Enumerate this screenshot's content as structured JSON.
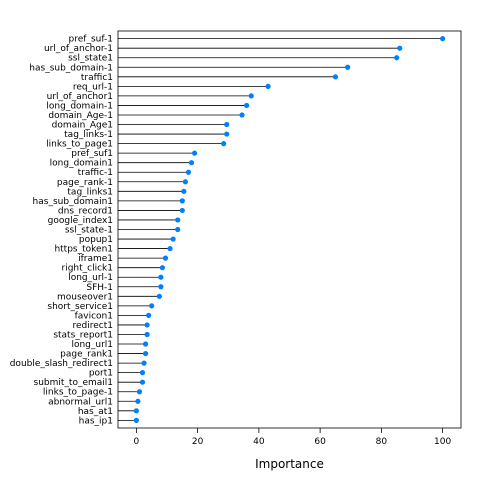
{
  "chart_data": {
    "type": "dotplot",
    "xlabel": "Importance",
    "ylabel": "",
    "title": "",
    "xlim": [
      -6,
      106
    ],
    "xticks": [
      0,
      20,
      40,
      60,
      80,
      100
    ],
    "xtick_labels": [
      "0",
      "20",
      "40",
      "60",
      "80",
      "100"
    ],
    "grid": false,
    "point_color": "#0080ff",
    "stem_color": "#000000",
    "categories": [
      "pref_suf-1",
      "url_of_anchor-1",
      "ssl_state1",
      "has_sub_domain-1",
      "traffic1",
      "req_url-1",
      "url_of_anchor1",
      "long_domain-1",
      "domain_Age-1",
      "domain_Age1",
      "tag_links-1",
      "links_to_page1",
      "pref_suf1",
      "long_domain1",
      "traffic-1",
      "page_rank-1",
      "tag_links1",
      "has_sub_domain1",
      "dns_record1",
      "google_index1",
      "ssl_state-1",
      "popup1",
      "https_token1",
      "iframe1",
      "right_click1",
      "long_url-1",
      "SFH-1",
      "mouseover1",
      "short_service1",
      "favicon1",
      "redirect1",
      "stats_report1",
      "long_url1",
      "page_rank1",
      "double_slash_redirect1",
      "port1",
      "submit_to_email1",
      "links_to_page-1",
      "abnormal_url1",
      "has_at1",
      "has_ip1"
    ],
    "values": [
      100,
      86,
      85,
      69,
      65,
      43,
      37.5,
      36,
      34.5,
      29.5,
      29.5,
      28.5,
      19,
      18,
      17,
      16,
      15.5,
      15,
      15,
      13.5,
      13.5,
      12,
      11,
      9.5,
      8.5,
      8,
      8,
      7.5,
      5,
      4,
      3.5,
      3.5,
      3,
      3,
      2.5,
      2,
      2,
      1,
      0.5,
      0,
      0
    ]
  }
}
